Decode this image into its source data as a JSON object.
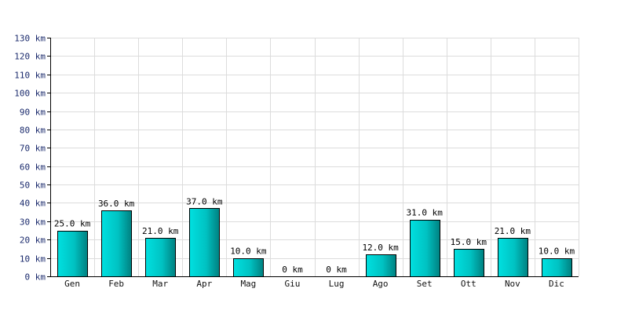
{
  "chart_data": {
    "type": "bar",
    "title": "",
    "xlabel": "",
    "ylabel": "",
    "unit": "km",
    "categories": [
      "Gen",
      "Feb",
      "Mar",
      "Apr",
      "Mag",
      "Giu",
      "Lug",
      "Ago",
      "Set",
      "Ott",
      "Nov",
      "Dic"
    ],
    "values": [
      25.0,
      36.0,
      21.0,
      37.0,
      10.0,
      0,
      0,
      12.0,
      31.0,
      15.0,
      21.0,
      10.0
    ],
    "data_labels": [
      "25.0 km",
      "36.0 km",
      "21.0 km",
      "37.0 km",
      "10.0 km",
      "0 km",
      "0 km",
      "12.0 km",
      "31.0 km",
      "15.0 km",
      "21.0 km",
      "10.0 km"
    ],
    "ylim": [
      0,
      130
    ],
    "yticks": [
      0,
      10,
      20,
      30,
      40,
      50,
      60,
      70,
      80,
      90,
      100,
      110,
      120,
      130
    ],
    "ytick_labels": [
      "0 km",
      "10 km",
      "20 km",
      "30 km",
      "40 km",
      "50 km",
      "60 km",
      "70 km",
      "80 km",
      "90 km",
      "100 km",
      "110 km",
      "120 km",
      "130 km"
    ],
    "grid": true,
    "legend": "none",
    "colors": {
      "bar_light": "#00e0e0",
      "bar_mid": "#00c2c2",
      "bar_dark": "#008080",
      "bar_stroke": "#000000",
      "grid": "#dcdcdc",
      "axis": "#000000",
      "tick_text": "#1a2a6c"
    }
  }
}
